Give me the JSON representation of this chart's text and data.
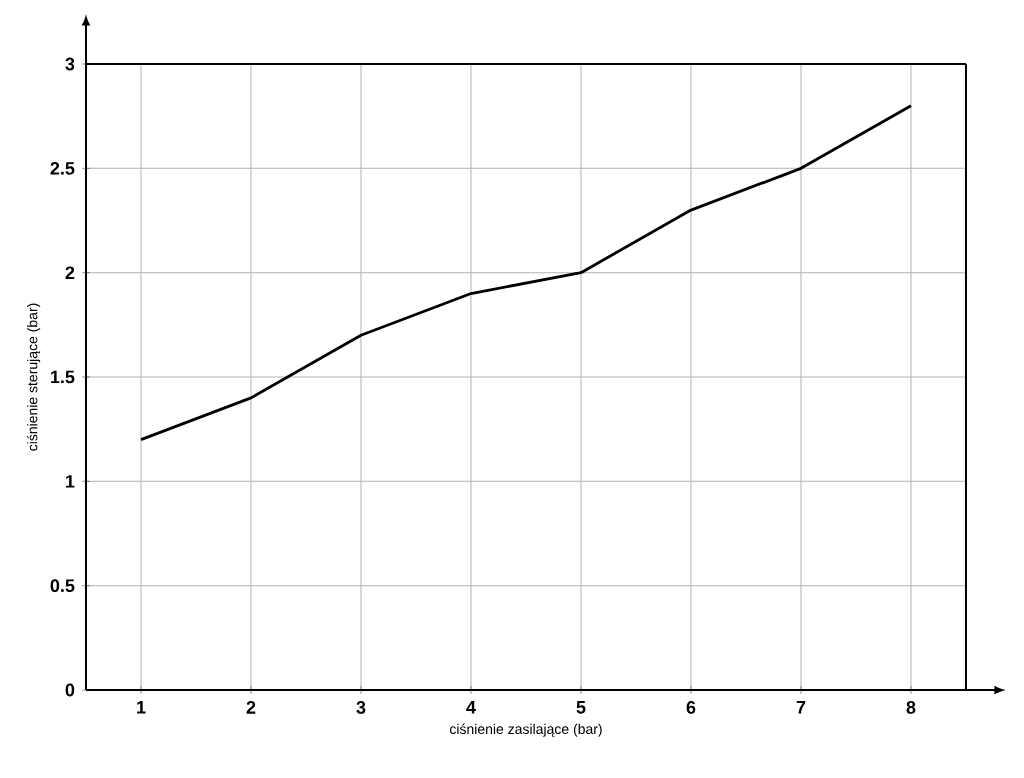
{
  "chart_data": {
    "type": "line",
    "xlabel": "ciśnienie zasilające (bar)",
    "ylabel": "ciśnienie sterujące (bar)",
    "x": [
      1,
      2,
      3,
      4,
      5,
      6,
      7,
      8
    ],
    "series": [
      {
        "color": "#000000",
        "values": [
          1.2,
          1.4,
          1.7,
          1.9,
          2.0,
          2.3,
          2.5,
          2.8
        ]
      }
    ],
    "xlim": [
      0.5,
      8.5
    ],
    "ylim": [
      0,
      3
    ],
    "xticks": [
      1,
      2,
      3,
      4,
      5,
      6,
      7,
      8
    ],
    "yticks": [
      0,
      0.5,
      1,
      1.5,
      2,
      2.5,
      3
    ],
    "grid": true,
    "marker": "none",
    "line_style": "solid"
  }
}
